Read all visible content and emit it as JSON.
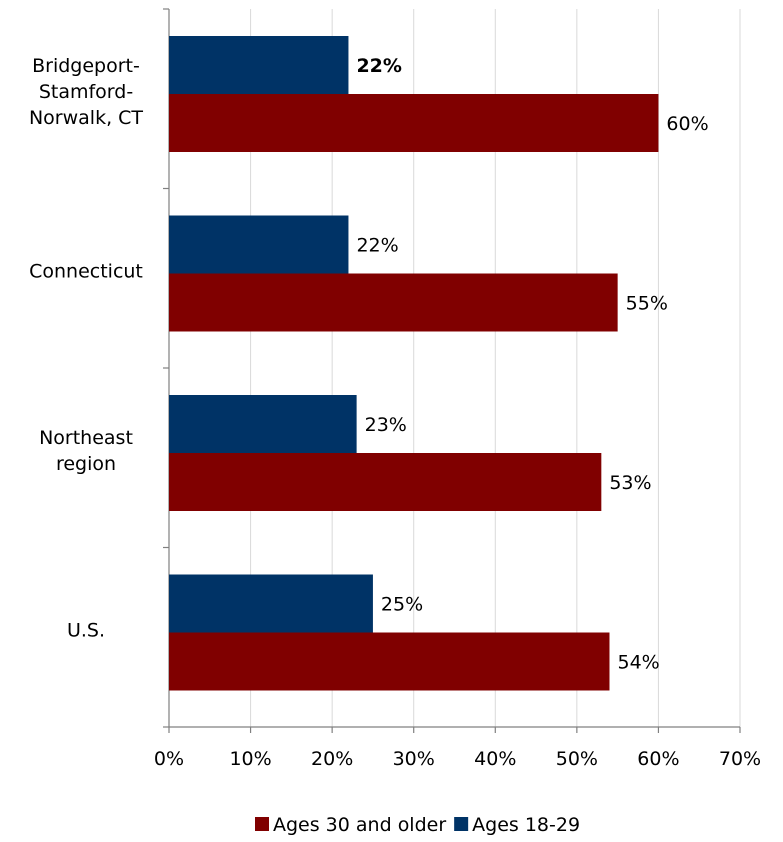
{
  "chart_data": {
    "type": "bar",
    "orientation": "horizontal",
    "categories": [
      [
        "Bridgeport-",
        "Stamford-",
        "Norwalk, CT"
      ],
      [
        "Connecticut"
      ],
      [
        "Northeast",
        "region"
      ],
      [
        "U.S."
      ]
    ],
    "series": [
      {
        "name": "Ages 18-29",
        "color": "#003366",
        "values": [
          22,
          22,
          23,
          25
        ],
        "labels": [
          "22%",
          "22%",
          "23%",
          "25%"
        ]
      },
      {
        "name": "Ages 30 and older",
        "color": "#800000",
        "values": [
          60,
          55,
          53,
          54
        ],
        "labels": [
          "60%",
          "55%",
          "53%",
          "54%"
        ]
      }
    ],
    "bold_labels": [
      [
        0,
        0
      ]
    ],
    "xlim": [
      0,
      70
    ],
    "x_ticks": [
      0,
      10,
      20,
      30,
      40,
      50,
      60,
      70
    ],
    "x_tick_labels": [
      "0%",
      "10%",
      "20%",
      "30%",
      "40%",
      "50%",
      "60%",
      "70%"
    ],
    "grid": "vertical",
    "legend": {
      "position": "bottom",
      "order": [
        "Ages 30 and older",
        "Ages 18-29"
      ]
    }
  }
}
